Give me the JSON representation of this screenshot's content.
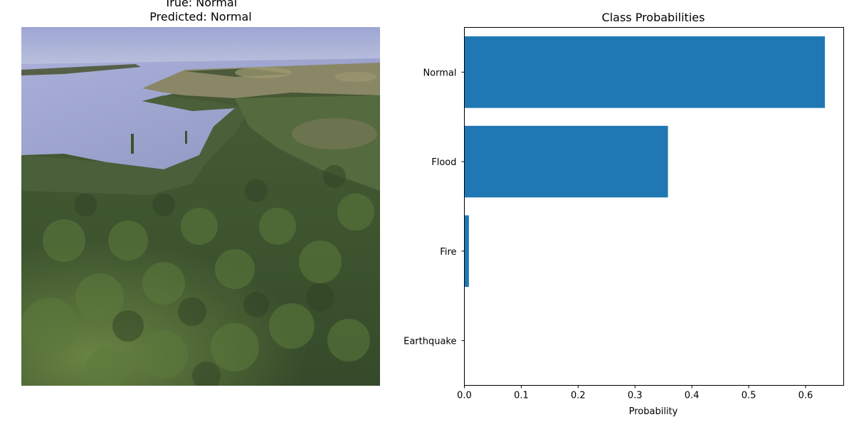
{
  "image_panel": {
    "true_label": "True: Normal",
    "predicted_label": "Predicted: Normal"
  },
  "chart_data": {
    "type": "bar",
    "orientation": "horizontal",
    "title": "Class Probabilities",
    "xlabel": "Probability",
    "ylabel": "",
    "categories": [
      "Normal",
      "Flood",
      "Fire",
      "Earthquake"
    ],
    "values": [
      0.634,
      0.358,
      0.008,
      0.0
    ],
    "xlim": [
      0,
      0.667
    ],
    "xticks": [
      0.0,
      0.1,
      0.2,
      0.3,
      0.4,
      0.5,
      0.6
    ],
    "xtick_labels": [
      "0.0",
      "0.1",
      "0.2",
      "0.3",
      "0.4",
      "0.5",
      "0.6"
    ],
    "bar_color": "#1f77b4",
    "grid": false
  }
}
